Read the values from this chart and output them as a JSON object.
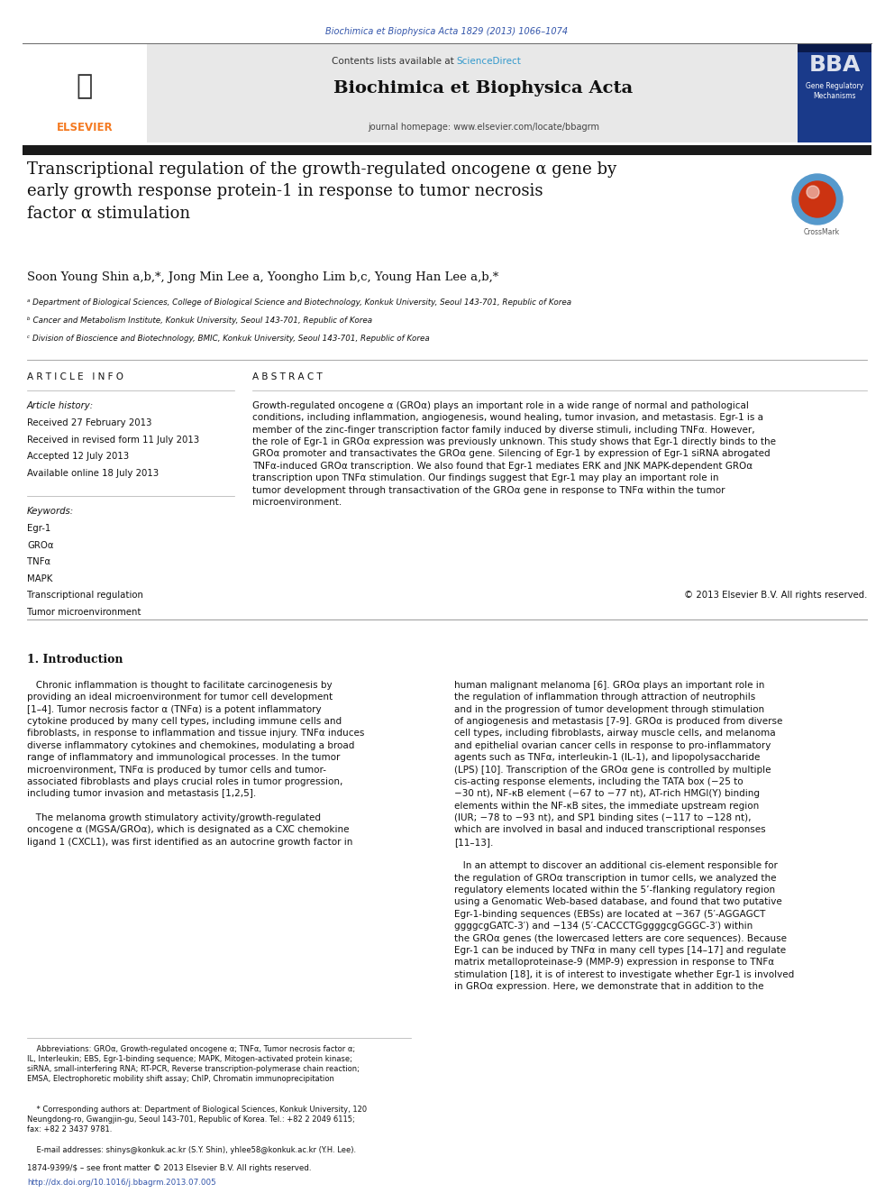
{
  "bg_color": "#ffffff",
  "page_width": 9.92,
  "page_height": 13.23,
  "journal_ref": "Biochimica et Biophysica Acta 1829 (2013) 1066–1074",
  "journal_ref_color": "#3355aa",
  "contents_text": "Contents lists available at ",
  "sciencedirect_text": "ScienceDirect",
  "sciencedirect_color": "#3399cc",
  "journal_name": "Biochimica et Biophysica Acta",
  "journal_homepage": "journal homepage: www.elsevier.com/locate/bbagrm",
  "header_bg": "#e8e8e8",
  "dark_bar_color": "#222222",
  "bba_bg": "#003399",
  "article_title": "Transcriptional regulation of the growth-regulated oncogene α gene by\nearly growth response protein-1 in response to tumor necrosis\nfactor α stimulation",
  "authors": "Soon Young Shin a,b,*, Jong Min Lee a, Yoongho Lim b,c, Young Han Lee a,b,*",
  "affil_a": "ᵃ Department of Biological Sciences, College of Biological Science and Biotechnology, Konkuk University, Seoul 143-701, Republic of Korea",
  "affil_b": "ᵇ Cancer and Metabolism Institute, Konkuk University, Seoul 143-701, Republic of Korea",
  "affil_c": "ᶜ Division of Bioscience and Biotechnology, BMIC, Konkuk University, Seoul 143-701, Republic of Korea",
  "article_info_title": "A R T I C L E   I N F O",
  "article_history_title": "Article history:",
  "history_lines": [
    "Received 27 February 2013",
    "Received in revised form 11 July 2013",
    "Accepted 12 July 2013",
    "Available online 18 July 2013"
  ],
  "keywords_title": "Keywords:",
  "keywords": [
    "Egr-1",
    "GROα",
    "TNFα",
    "MAPK",
    "Transcriptional regulation",
    "Tumor microenvironment"
  ],
  "abstract_title": "A B S T R A C T",
  "abstract_text": "Growth-regulated oncogene α (GROα) plays an important role in a wide range of normal and pathological\nconditions, including inflammation, angiogenesis, wound healing, tumor invasion, and metastasis. Egr-1 is a\nmember of the zinc-finger transcription factor family induced by diverse stimuli, including TNFα. However,\nthe role of Egr-1 in GROα expression was previously unknown. This study shows that Egr-1 directly binds to the\nGROα promoter and transactivates the GROα gene. Silencing of Egr-1 by expression of Egr-1 siRNA abrogated\nTNFα-induced GROα transcription. We also found that Egr-1 mediates ERK and JNK MAPK-dependent GROα\ntranscription upon TNFα stimulation. Our findings suggest that Egr-1 may play an important role in\ntumor development through transactivation of the GROα gene in response to TNFα within the tumor\nmicroenvironment.",
  "copyright": "© 2013 Elsevier B.V. All rights reserved.",
  "section1_title": "1. Introduction",
  "intro_col1": "   Chronic inflammation is thought to facilitate carcinogenesis by\nproviding an ideal microenvironment for tumor cell development\n[1–4]. Tumor necrosis factor α (TNFα) is a potent inflammatory\ncytokine produced by many cell types, including immune cells and\nfibroblasts, in response to inflammation and tissue injury. TNFα induces\ndiverse inflammatory cytokines and chemokines, modulating a broad\nrange of inflammatory and immunological processes. In the tumor\nmicroenvironment, TNFα is produced by tumor cells and tumor-\nassociated fibroblasts and plays crucial roles in tumor progression,\nincluding tumor invasion and metastasis [1,2,5].\n\n   The melanoma growth stimulatory activity/growth-regulated\noncogene α (MGSA/GROα), which is designated as a CXC chemokine\nligand 1 (CXCL1), was first identified as an autocrine growth factor in",
  "intro_col2": "human malignant melanoma [6]. GROα plays an important role in\nthe regulation of inflammation through attraction of neutrophils\nand in the progression of tumor development through stimulation\nof angiogenesis and metastasis [7-9]. GROα is produced from diverse\ncell types, including fibroblasts, airway muscle cells, and melanoma\nand epithelial ovarian cancer cells in response to pro-inflammatory\nagents such as TNFα, interleukin-1 (IL-1), and lipopolysaccharide\n(LPS) [10]. Transcription of the GROα gene is controlled by multiple\ncis-acting response elements, including the TATA box (−25 to\n−30 nt), NF-κB element (−67 to −77 nt), AT-rich HMGI(Y) binding\nelements within the NF-κB sites, the immediate upstream region\n(IUR; −78 to −93 nt), and SP1 binding sites (−117 to −128 nt),\nwhich are involved in basal and induced transcriptional responses\n[11–13].\n\n   In an attempt to discover an additional cis-element responsible for\nthe regulation of GROα transcription in tumor cells, we analyzed the\nregulatory elements located within the 5’-flanking regulatory region\nusing a Genomatic Web-based database, and found that two putative\nEgr-1-binding sequences (EBSs) are located at −367 (5′-AGGAGCT\nggggcgGATC-3′) and −134 (5′-CACCCTGggggcgGGGC-3′) within\nthe GROα genes (the lowercased letters are core sequences). Because\nEgr-1 can be induced by TNFα in many cell types [14–17] and regulate\nmatrix metalloproteinase-9 (MMP-9) expression in response to TNFα\nstimulation [18], it is of interest to investigate whether Egr-1 is involved\nin GROα expression. Here, we demonstrate that in addition to the",
  "footnote_abbrev": "    Abbreviations: GROα, Growth-regulated oncogene α; TNFα, Tumor necrosis factor α;\nIL, Interleukin; EBS, Egr-1-binding sequence; MAPK, Mitogen-activated protein kinase;\nsiRNA, small-interfering RNA; RT-PCR, Reverse transcription-polymerase chain reaction;\nEMSA, Electrophoretic mobility shift assay; ChIP, Chromatin immunoprecipitation",
  "footnote_corr": "    * Corresponding authors at: Department of Biological Sciences, Konkuk University, 120\nNeungdong-ro, Gwangjin-gu, Seoul 143-701, Republic of Korea. Tel.: +82 2 2049 6115;\nfax: +82 2 3437 9781.",
  "footnote_email": "    E-mail addresses: shinys@konkuk.ac.kr (S.Y. Shin), yhlee58@konkuk.ac.kr (Y.H. Lee).",
  "issn_line": "1874-9399/$ – see front matter © 2013 Elsevier B.V. All rights reserved.",
  "doi_line": "http://dx.doi.org/10.1016/j.bbagrm.2013.07.005",
  "link_color": "#3355aa",
  "elsevier_orange": "#F47920"
}
